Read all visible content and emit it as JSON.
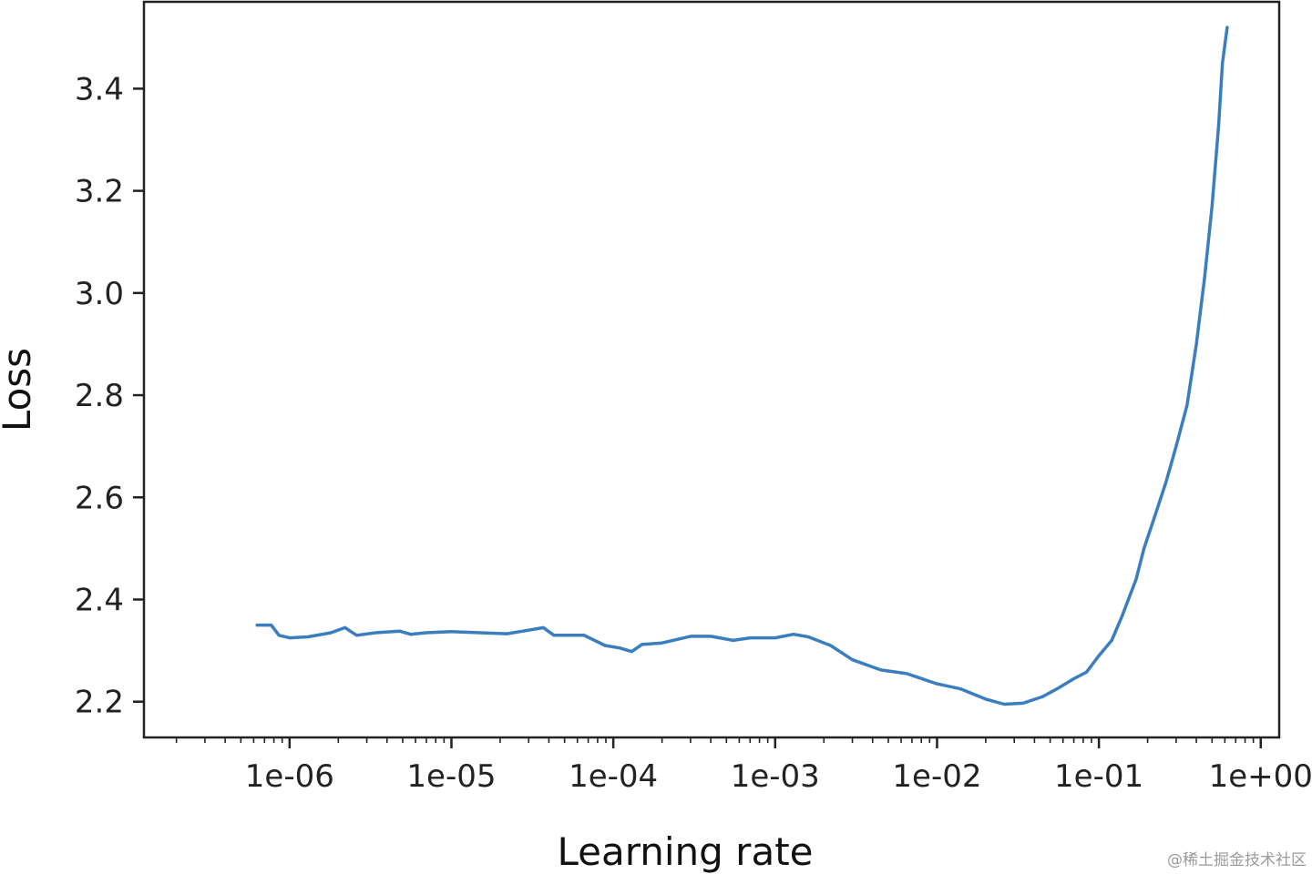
{
  "chart_data": {
    "type": "line",
    "xlabel": "Learning rate",
    "ylabel": "Loss",
    "x_scale": "log",
    "xlim": [
      1.26e-07,
      1.3
    ],
    "ylim": [
      2.13,
      3.57
    ],
    "x_ticks": [
      1e-06,
      1e-05,
      0.0001,
      0.001,
      0.01,
      0.1,
      1
    ],
    "x_tick_labels": [
      "1e-06",
      "1e-05",
      "1e-04",
      "1e-03",
      "1e-02",
      "1e-01",
      "1e+00"
    ],
    "y_ticks": [
      2.2,
      2.4,
      2.6,
      2.8,
      3.0,
      3.2,
      3.4
    ],
    "y_tick_labels": [
      "2.2",
      "2.4",
      "2.6",
      "2.8",
      "3.0",
      "3.2",
      "3.4"
    ],
    "grid": false,
    "color": "#3a7ebf",
    "series": [
      {
        "x": [
          6.3e-07,
          7.7e-07,
          8.6e-07,
          1e-06,
          1.3e-06,
          1.8e-06,
          2.2e-06,
          2.6e-06,
          3.4e-06,
          4.8e-06,
          5.6e-06,
          7e-06,
          1e-05,
          1.5e-05,
          2.2e-05,
          3e-05,
          3.7e-05,
          4.3e-05,
          6.6e-05,
          8.9e-05,
          0.00011,
          0.00013,
          0.00015,
          0.0002,
          0.0003,
          0.0004,
          0.00055,
          0.0007,
          0.001,
          0.0013,
          0.0016,
          0.0022,
          0.003,
          0.0045,
          0.0065,
          0.01,
          0.014,
          0.02,
          0.026,
          0.034,
          0.045,
          0.055,
          0.07,
          0.084,
          0.1,
          0.12,
          0.14,
          0.17,
          0.19,
          0.22,
          0.26,
          0.3,
          0.35,
          0.4,
          0.45,
          0.5,
          0.55,
          0.58,
          0.62
        ],
        "y": [
          2.35,
          2.35,
          2.33,
          2.325,
          2.327,
          2.335,
          2.345,
          2.33,
          2.335,
          2.338,
          2.332,
          2.335,
          2.337,
          2.335,
          2.333,
          2.34,
          2.345,
          2.33,
          2.33,
          2.31,
          2.305,
          2.298,
          2.312,
          2.315,
          2.328,
          2.328,
          2.32,
          2.325,
          2.325,
          2.332,
          2.327,
          2.31,
          2.282,
          2.262,
          2.255,
          2.235,
          2.225,
          2.205,
          2.195,
          2.197,
          2.21,
          2.225,
          2.245,
          2.258,
          2.29,
          2.32,
          2.37,
          2.44,
          2.5,
          2.56,
          2.63,
          2.7,
          2.78,
          2.9,
          3.03,
          3.17,
          3.33,
          3.45,
          3.52
        ]
      }
    ]
  },
  "watermark": "@稀土掘金技术社区"
}
